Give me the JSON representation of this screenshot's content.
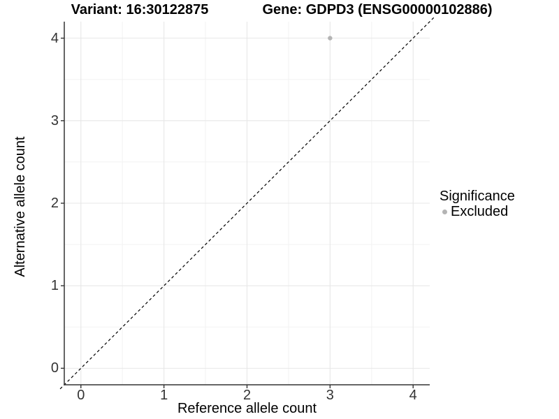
{
  "chart_data": {
    "type": "scatter",
    "title_left": "Variant: 16:30122875",
    "title_right": "Gene: GDPD3 (ENSG00000102886)",
    "xlabel": "Reference allele count",
    "ylabel": "Alternative allele count",
    "xlim": [
      -0.2,
      4.2
    ],
    "ylim": [
      -0.2,
      4.2
    ],
    "x_ticks": [
      0,
      1,
      2,
      3,
      4
    ],
    "y_ticks": [
      0,
      1,
      2,
      3,
      4
    ],
    "x_minor_ticks": [
      0.5,
      1.5,
      2.5,
      3.5
    ],
    "y_minor_ticks": [
      0.5,
      1.5,
      2.5,
      3.5
    ],
    "grid": true,
    "legend_position": "right",
    "series": [
      {
        "name": "Excluded",
        "color": "#b4b4b4",
        "points": [
          {
            "x": 3,
            "y": 4
          }
        ]
      }
    ],
    "identity_line": {
      "style": "dashed",
      "color": "#000000",
      "range": [
        -0.25,
        4.25
      ]
    },
    "legend": {
      "title": "Significance",
      "items": [
        {
          "label": "Excluded",
          "color": "#b4b4b4",
          "marker": "circle-icon"
        }
      ]
    },
    "style": {
      "background": "#ffffff",
      "axis_color": "#333333",
      "tick_label_color": "#333333",
      "grid_major_color": "#e7e7e7",
      "grid_minor_color": "#f2f2f2"
    }
  }
}
